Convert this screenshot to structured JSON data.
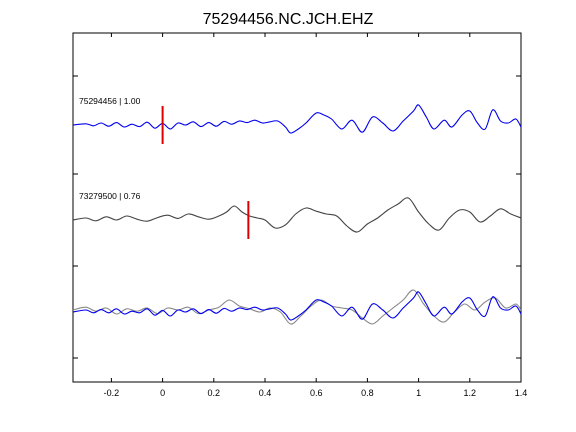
{
  "chart_data": {
    "type": "line",
    "title": "75294456.NC.JCH.EHZ",
    "xlabel": "",
    "ylabel": "",
    "xlim": [
      -0.35,
      1.4
    ],
    "x_ticks": [
      -0.2,
      0,
      0.2,
      0.4,
      0.6,
      0.8,
      1,
      1.2,
      1.4
    ],
    "x_tick_labels": [
      "-0.2",
      "0",
      "0.2",
      "0.4",
      "0.6",
      "0.8",
      "1",
      "1.2",
      "1.4"
    ],
    "grid": false,
    "colors": {
      "master": "#0000ee",
      "correlated": "#444444",
      "pick": "#dd0000",
      "overlay_gray": "#888888"
    },
    "traces": [
      {
        "label": "75294456 | 1.00",
        "color": "#0000ee",
        "pick_time": 0.0,
        "series": {
          "x": [
            -0.35,
            -0.3,
            -0.27,
            -0.24,
            -0.21,
            -0.18,
            -0.15,
            -0.12,
            -0.09,
            -0.06,
            -0.03,
            0.0,
            0.03,
            0.06,
            0.09,
            0.12,
            0.15,
            0.18,
            0.21,
            0.24,
            0.27,
            0.3,
            0.33,
            0.36,
            0.39,
            0.42,
            0.45,
            0.48,
            0.5,
            0.53,
            0.56,
            0.6,
            0.63,
            0.66,
            0.7,
            0.74,
            0.78,
            0.82,
            0.86,
            0.9,
            0.94,
            0.98,
            1.0,
            1.03,
            1.06,
            1.1,
            1.13,
            1.17,
            1.2,
            1.23,
            1.26,
            1.29,
            1.32,
            1.35,
            1.38,
            1.4
          ],
          "y": [
            0.0,
            0.03,
            -0.02,
            0.05,
            -0.03,
            0.06,
            -0.05,
            0.02,
            -0.04,
            0.07,
            -0.08,
            0.04,
            -0.1,
            0.05,
            0.0,
            0.08,
            -0.04,
            0.06,
            -0.03,
            0.09,
            0.02,
            0.1,
            0.06,
            0.12,
            0.05,
            0.08,
            0.1,
            -0.05,
            -0.2,
            -0.1,
            0.05,
            0.3,
            0.25,
            0.15,
            -0.1,
            0.12,
            -0.18,
            0.2,
            0.05,
            -0.15,
            0.1,
            0.35,
            0.5,
            0.2,
            -0.1,
            0.12,
            -0.05,
            0.25,
            0.35,
            0.05,
            -0.1,
            0.38,
            0.1,
            0.05,
            0.15,
            -0.05
          ]
        }
      },
      {
        "label": "73279500 | 0.76",
        "color": "#444444",
        "pick_time": 0.335,
        "series": {
          "x": [
            -0.35,
            -0.3,
            -0.26,
            -0.22,
            -0.18,
            -0.14,
            -0.1,
            -0.06,
            -0.02,
            0.02,
            0.06,
            0.1,
            0.14,
            0.18,
            0.22,
            0.25,
            0.28,
            0.31,
            0.34,
            0.37,
            0.4,
            0.44,
            0.48,
            0.52,
            0.56,
            0.6,
            0.64,
            0.68,
            0.72,
            0.76,
            0.8,
            0.84,
            0.88,
            0.92,
            0.96,
            1.0,
            1.04,
            1.08,
            1.12,
            1.16,
            1.2,
            1.24,
            1.28,
            1.32,
            1.36,
            1.4
          ],
          "y": [
            0.0,
            0.05,
            -0.02,
            0.08,
            0.0,
            0.1,
            0.02,
            -0.03,
            0.06,
            0.12,
            0.04,
            0.15,
            0.08,
            0.02,
            0.1,
            0.2,
            0.35,
            0.2,
            0.1,
            0.05,
            0.0,
            -0.2,
            -0.12,
            0.15,
            0.3,
            0.22,
            0.15,
            0.1,
            -0.15,
            -0.3,
            -0.1,
            0.05,
            0.25,
            0.4,
            0.55,
            0.2,
            -0.1,
            -0.25,
            0.05,
            0.25,
            0.2,
            -0.05,
            0.1,
            0.28,
            0.15,
            0.05
          ]
        }
      }
    ],
    "overlay": {
      "series_colors": [
        "#888888",
        "#0000ee"
      ],
      "gray": {
        "x": [
          -0.35,
          -0.3,
          -0.26,
          -0.22,
          -0.18,
          -0.14,
          -0.1,
          -0.06,
          -0.02,
          0.02,
          0.06,
          0.1,
          0.14,
          0.18,
          0.22,
          0.26,
          0.3,
          0.34,
          0.38,
          0.42,
          0.46,
          0.5,
          0.54,
          0.58,
          0.62,
          0.66,
          0.7,
          0.74,
          0.78,
          0.82,
          0.86,
          0.9,
          0.94,
          0.98,
          1.02,
          1.06,
          1.1,
          1.14,
          1.18,
          1.22,
          1.26,
          1.3,
          1.34,
          1.38,
          1.4
        ],
        "y": [
          0.05,
          0.12,
          0.02,
          0.1,
          -0.05,
          0.08,
          0.02,
          0.1,
          -0.04,
          0.1,
          0.05,
          0.12,
          -0.04,
          0.05,
          0.12,
          0.3,
          0.15,
          0.08,
          0.0,
          0.1,
          0.0,
          -0.3,
          -0.1,
          0.15,
          0.3,
          0.15,
          0.1,
          0.05,
          -0.15,
          -0.3,
          -0.1,
          0.1,
          0.3,
          0.55,
          0.2,
          -0.1,
          -0.25,
          0.0,
          0.2,
          0.05,
          0.25,
          0.35,
          0.1,
          0.2,
          0.05
        ]
      },
      "blue": {
        "x": [
          -0.35,
          -0.3,
          -0.27,
          -0.24,
          -0.21,
          -0.18,
          -0.15,
          -0.12,
          -0.09,
          -0.06,
          -0.03,
          0.0,
          0.03,
          0.06,
          0.09,
          0.12,
          0.15,
          0.18,
          0.21,
          0.24,
          0.27,
          0.3,
          0.33,
          0.36,
          0.39,
          0.42,
          0.45,
          0.48,
          0.5,
          0.53,
          0.56,
          0.6,
          0.63,
          0.66,
          0.7,
          0.74,
          0.78,
          0.82,
          0.86,
          0.9,
          0.94,
          0.98,
          1.0,
          1.03,
          1.06,
          1.1,
          1.13,
          1.17,
          1.2,
          1.23,
          1.26,
          1.29,
          1.32,
          1.35,
          1.38,
          1.4
        ],
        "y": [
          0.0,
          0.05,
          -0.02,
          0.06,
          -0.02,
          0.08,
          -0.05,
          0.02,
          -0.02,
          0.08,
          -0.08,
          0.04,
          -0.1,
          0.05,
          0.0,
          0.08,
          -0.04,
          0.06,
          -0.03,
          0.09,
          0.02,
          0.1,
          0.06,
          0.12,
          0.05,
          0.08,
          0.1,
          -0.05,
          -0.2,
          -0.1,
          0.05,
          0.3,
          0.25,
          0.15,
          -0.1,
          0.12,
          -0.18,
          0.2,
          0.05,
          -0.15,
          0.1,
          0.35,
          0.5,
          0.2,
          -0.1,
          0.12,
          -0.05,
          0.25,
          0.35,
          0.05,
          -0.1,
          0.38,
          0.1,
          0.05,
          0.15,
          -0.05
        ]
      }
    }
  }
}
